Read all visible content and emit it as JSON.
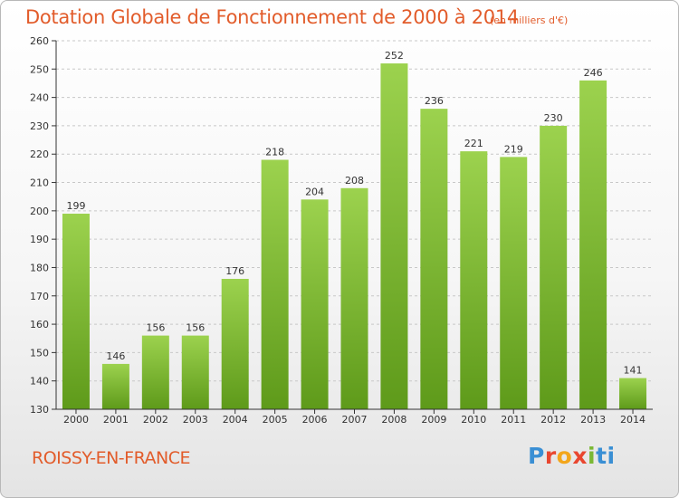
{
  "chart_data": {
    "type": "bar",
    "title": "Dotation Globale de Fonctionnement de 2000 à 2014",
    "unit_note": "(en milliers d'€)",
    "categories": [
      "2000",
      "2001",
      "2002",
      "2003",
      "2004",
      "2005",
      "2006",
      "2007",
      "2008",
      "2009",
      "2010",
      "2011",
      "2012",
      "2013",
      "2014"
    ],
    "values": [
      199,
      146,
      156,
      156,
      176,
      218,
      204,
      208,
      252,
      236,
      221,
      219,
      230,
      246,
      141
    ],
    "ylim": [
      130,
      260
    ],
    "yticks": [
      130,
      140,
      150,
      160,
      170,
      180,
      190,
      200,
      210,
      220,
      230,
      240,
      250,
      260
    ],
    "grid": "dashed horizontal",
    "bar_color_top": "#9cd24e",
    "bar_color_bottom": "#5e9a1a",
    "xlabel": "",
    "ylabel": ""
  },
  "footer": {
    "commune": "ROISSY-EN-FRANCE",
    "logo_letters": [
      "P",
      "r",
      "o",
      "x",
      "i",
      "ti"
    ],
    "logo": "Proxiti"
  },
  "colors": {
    "accent": "#e25c2b",
    "axis": "#333333",
    "grid": "#c8c8c8"
  }
}
